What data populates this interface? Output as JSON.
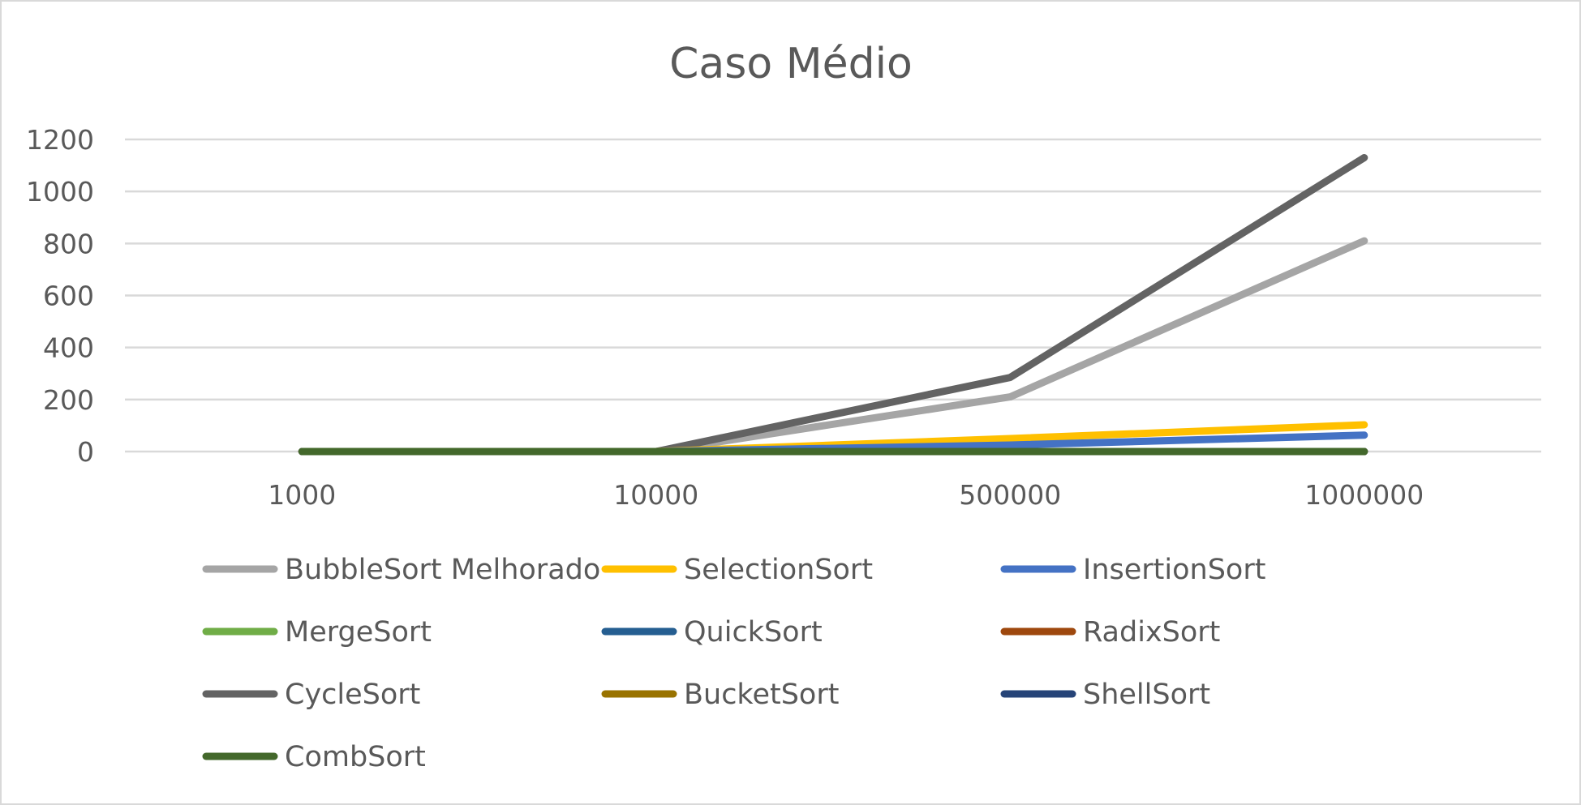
{
  "chart_data": {
    "type": "line",
    "title": "Caso Médio",
    "xlabel": "",
    "ylabel": "",
    "categories": [
      "1000",
      "10000",
      "500000",
      "1000000"
    ],
    "y_ticks": [
      "0",
      "200",
      "400",
      "600",
      "800",
      "1000",
      "1200"
    ],
    "ylim": [
      0,
      1200
    ],
    "grid": true,
    "legend_position": "bottom",
    "series": [
      {
        "name": "BubbleSort Melhorado",
        "color": "#A5A5A5",
        "values": [
          0,
          0,
          210,
          810
        ]
      },
      {
        "name": "SelectionSort",
        "color": "#FFC000",
        "values": [
          0,
          0,
          50,
          103
        ]
      },
      {
        "name": "InsertionSort",
        "color": "#4472C4",
        "values": [
          0,
          0,
          25,
          63
        ]
      },
      {
        "name": "MergeSort",
        "color": "#70AD47",
        "values": [
          0,
          0,
          0,
          0
        ]
      },
      {
        "name": "QuickSort",
        "color": "#255E91",
        "values": [
          0,
          0,
          0,
          0
        ]
      },
      {
        "name": "RadixSort",
        "color": "#9E480E",
        "values": [
          0,
          0,
          0,
          0
        ]
      },
      {
        "name": "CycleSort",
        "color": "#636363",
        "values": [
          0,
          0,
          285,
          1130
        ]
      },
      {
        "name": "BucketSort",
        "color": "#997300",
        "values": [
          0,
          0,
          0,
          0
        ]
      },
      {
        "name": "ShellSort",
        "color": "#264478",
        "values": [
          0,
          0,
          0,
          0
        ]
      },
      {
        "name": "CombSort",
        "color": "#43682B",
        "values": [
          0,
          0,
          0,
          0
        ]
      }
    ]
  }
}
